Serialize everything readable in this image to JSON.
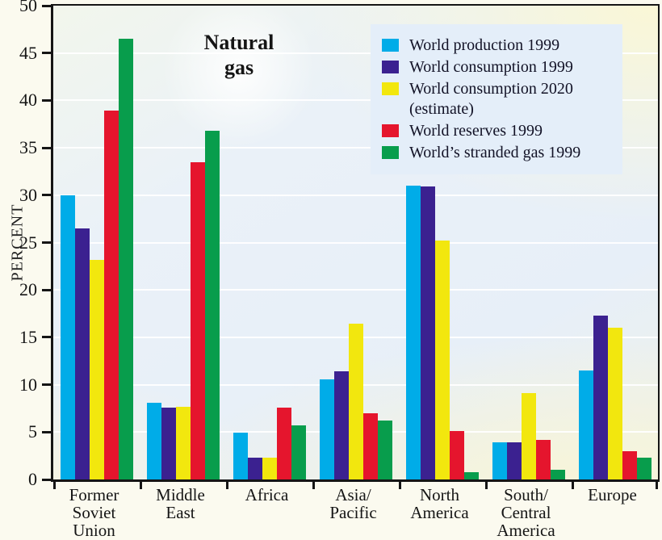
{
  "chart_data": {
    "type": "bar",
    "title": "Natural gas",
    "ylabel": "PERCENT",
    "xlabel": "",
    "ylim": [
      0,
      50
    ],
    "ytick_step": 5,
    "ytick_labels": [
      "0",
      "5",
      "10",
      "15",
      "20",
      "25",
      "30",
      "35",
      "40",
      "45",
      "50"
    ],
    "grid": true,
    "legend_position": "top-right",
    "categories": [
      "Former\nSoviet\nUnion",
      "Middle\nEast",
      "Africa",
      "Asia/\nPacific",
      "North\nAmerica",
      "South/\nCentral\nAmerica",
      "Europe"
    ],
    "series": [
      {
        "name": "World production 1999",
        "color": "#00ACE8",
        "values": [
          30.0,
          8.1,
          4.9,
          10.6,
          31.0,
          3.9,
          11.5
        ]
      },
      {
        "name": "World consumption 1999",
        "color": "#3B2190",
        "values": [
          26.5,
          7.6,
          2.3,
          11.4,
          30.9,
          3.9,
          17.3
        ]
      },
      {
        "name": "World consumption 2020 (estimate)",
        "color": "#F2E70E",
        "values": [
          23.2,
          7.7,
          2.3,
          16.4,
          25.2,
          9.1,
          16.0
        ]
      },
      {
        "name": "World reserves 1999",
        "color": "#E5152D",
        "values": [
          38.9,
          33.5,
          7.6,
          7.0,
          5.1,
          4.2,
          3.0
        ]
      },
      {
        "name": "World's stranded gas 1999",
        "color": "#089D4C",
        "values": [
          46.5,
          36.8,
          5.7,
          6.2,
          0.8,
          1.0,
          2.3
        ]
      }
    ]
  },
  "legend": {
    "items": [
      {
        "label": "World production 1999",
        "color": "#00ACE8"
      },
      {
        "label": "World consumption 1999",
        "color": "#3B2190"
      },
      {
        "label": "World consumption 2020 (estimate)",
        "color": "#F2E70E"
      },
      {
        "label": "World reserves 1999",
        "color": "#E5152D"
      },
      {
        "label": "World’s stranded gas 1999",
        "color": "#089D4C"
      }
    ]
  },
  "colors": {
    "plot_background_blue": "#E7EFF8",
    "plot_background_yellow": "#FAF7D6",
    "legend_background": "#E4EEF9",
    "axis": "#151515",
    "gridline": "#FFFFFF"
  }
}
